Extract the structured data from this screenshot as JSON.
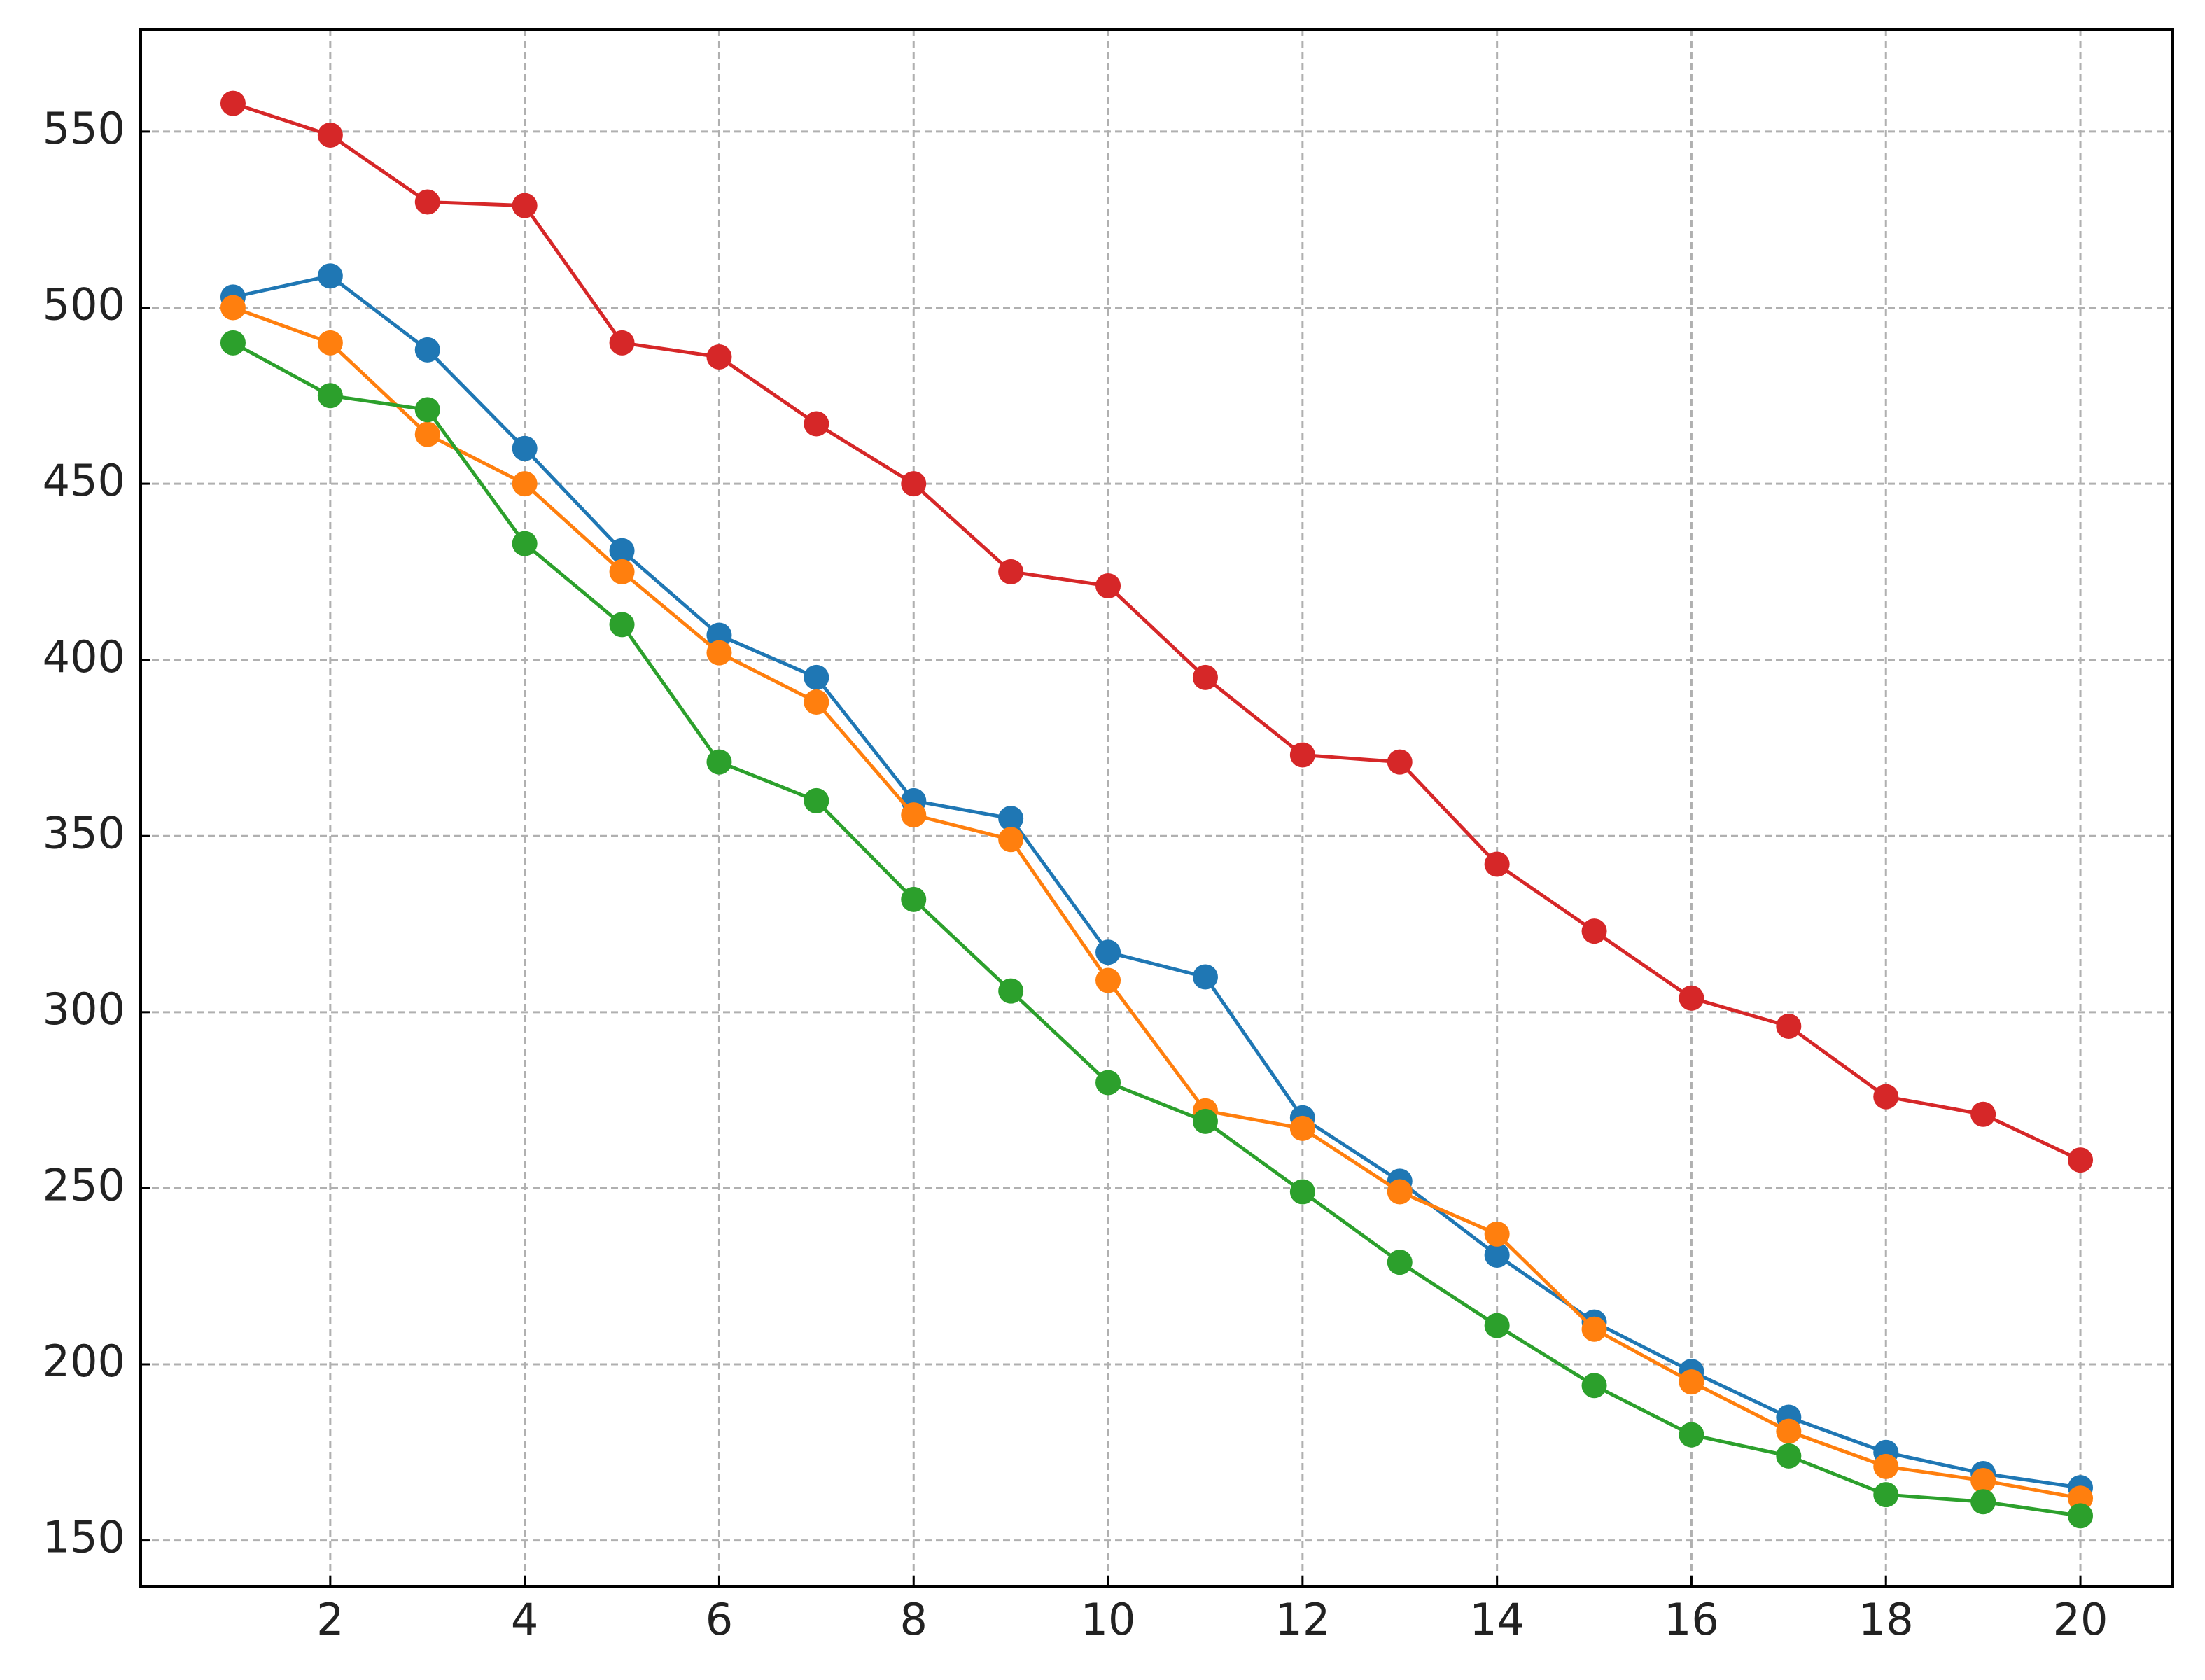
{
  "chart_data": {
    "type": "line",
    "x": [
      1,
      2,
      3,
      4,
      5,
      6,
      7,
      8,
      9,
      10,
      11,
      12,
      13,
      14,
      15,
      16,
      17,
      18,
      19,
      20
    ],
    "series": [
      {
        "color": "#1f77b4",
        "values": [
          503,
          509,
          488,
          460,
          431,
          407,
          395,
          360,
          355,
          317,
          310,
          270,
          252,
          231,
          212,
          198,
          185,
          175,
          169,
          165
        ]
      },
      {
        "color": "#ff7f0e",
        "values": [
          500,
          490,
          464,
          450,
          425,
          402,
          388,
          356,
          349,
          309,
          272,
          267,
          249,
          237,
          210,
          195,
          181,
          171,
          167,
          162
        ]
      },
      {
        "color": "#2ca02c",
        "values": [
          490,
          475,
          471,
          433,
          410,
          371,
          360,
          332,
          306,
          280,
          269,
          249,
          229,
          211,
          194,
          180,
          174,
          163,
          161,
          157
        ]
      },
      {
        "color": "#d62728",
        "values": [
          558,
          549,
          530,
          529,
          490,
          486,
          467,
          450,
          425,
          421,
          395,
          373,
          371,
          342,
          323,
          304,
          296,
          276,
          271,
          258
        ]
      }
    ],
    "xlim": [
      0.05,
      20.95
    ],
    "ylim": [
      137,
      579
    ],
    "xticks": [
      2,
      4,
      6,
      8,
      10,
      12,
      14,
      16,
      18,
      20
    ],
    "yticks": [
      150,
      200,
      250,
      300,
      350,
      400,
      450,
      500,
      550
    ],
    "grid": true
  }
}
